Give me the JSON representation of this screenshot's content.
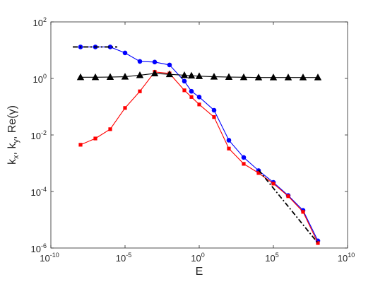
{
  "chart_data": {
    "type": "line",
    "xlabel": "E",
    "ylabel": "k_x, k_y, Re(γ)",
    "x_scale": "log",
    "y_scale": "log",
    "xlim": [
      1e-10,
      10000000000.0
    ],
    "ylim": [
      1e-06,
      100
    ],
    "grid": false,
    "x_ticks": [
      {
        "value": 1e-10,
        "base": "10",
        "exp": "-10"
      },
      {
        "value": 1e-05,
        "base": "10",
        "exp": "-5"
      },
      {
        "value": 1,
        "base": "10",
        "exp": "0"
      },
      {
        "value": 100000.0,
        "base": "10",
        "exp": "5"
      },
      {
        "value": 10000000000.0,
        "base": "10",
        "exp": "10"
      }
    ],
    "y_ticks": [
      {
        "value": 1e-06,
        "base": "10",
        "exp": "-6"
      },
      {
        "value": 0.0001,
        "base": "10",
        "exp": "-4"
      },
      {
        "value": 0.01,
        "base": "10",
        "exp": "-2"
      },
      {
        "value": 1,
        "base": "10",
        "exp": "0"
      },
      {
        "value": 100,
        "base": "10",
        "exp": "2"
      }
    ],
    "series": [
      {
        "color": "#0000ff",
        "marker": "circle",
        "x": [
          1e-08,
          1e-07,
          1e-06,
          1e-05,
          0.0001,
          0.001,
          0.01,
          0.1,
          0.3,
          1,
          10,
          100,
          1000,
          10000,
          100000,
          1000000,
          10000000,
          100000000
        ],
        "y": [
          13,
          13,
          13,
          8,
          4,
          3.8,
          3,
          0.8,
          0.35,
          0.22,
          0.075,
          0.0065,
          0.0016,
          0.00055,
          0.00021,
          7.2e-05,
          2.15e-05,
          1.8e-06
        ]
      },
      {
        "color": "#ff0000",
        "marker": "square",
        "x": [
          1e-08,
          1e-07,
          1e-06,
          1e-05,
          0.0001,
          0.001,
          0.01,
          0.1,
          0.3,
          1,
          10,
          100,
          1000,
          10000,
          100000,
          1000000,
          10000000,
          100000000
        ],
        "y": [
          0.0045,
          0.0075,
          0.016,
          0.09,
          0.35,
          1.7,
          1.5,
          0.38,
          0.22,
          0.12,
          0.043,
          0.0033,
          0.00095,
          0.00045,
          0.00019,
          6.8e-05,
          1.9e-05,
          1.5e-06
        ]
      },
      {
        "color": "#000000",
        "marker": "triangle",
        "x": [
          1e-08,
          1e-07,
          1e-06,
          1e-05,
          0.0001,
          0.001,
          0.01,
          0.1,
          0.3,
          1,
          10,
          100,
          1000,
          10000,
          100000,
          1000000,
          10000000,
          100000000
        ],
        "y": [
          1.1,
          1.1,
          1.12,
          1.15,
          1.3,
          1.5,
          1.4,
          1.3,
          1.25,
          1.2,
          1.15,
          1.12,
          1.1,
          1.08,
          1.08,
          1.08,
          1.08,
          1.08
        ]
      },
      {
        "color": "#000000",
        "marker": "none",
        "dash": "dash-dot",
        "x": [
          3e-09,
          3e-06
        ],
        "y": [
          13,
          13
        ]
      },
      {
        "color": "#000000",
        "marker": "none",
        "dash": "dash-dot",
        "x": [
          10000,
          100000000
        ],
        "y": [
          0.00058,
          1.5e-06
        ]
      }
    ]
  }
}
